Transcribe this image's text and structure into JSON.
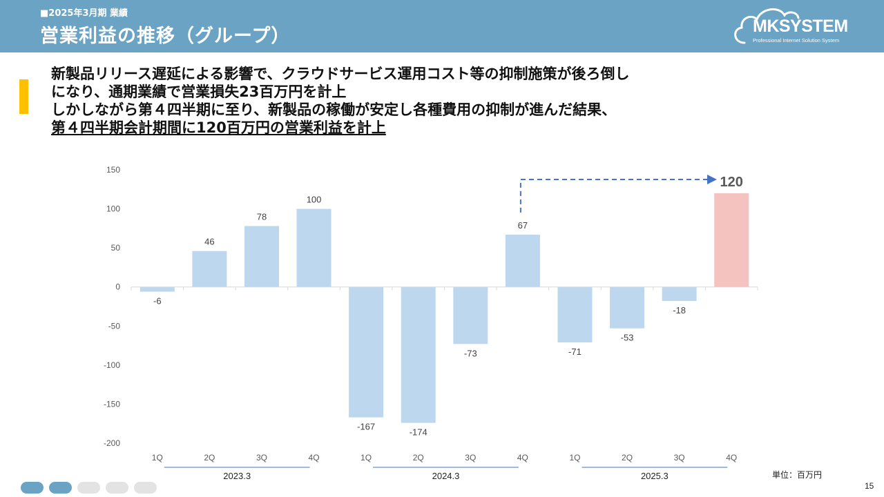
{
  "header": {
    "section_label": "■2025年3月期 業績",
    "title": "営業利益の推移（グループ）"
  },
  "logo": {
    "name": "MKSYSTEM",
    "tagline": "Professional Internet Solution System"
  },
  "summary": {
    "line1": "新製品リリース遅延による影響で、クラウドサービス運用コスト等の抑制施策が後ろ倒し",
    "line2": "になり、通期業績で営業損失23百万円を計上",
    "line3": "しかしながら第４四半期に至り、新製品の稼働が安定し各種費用の抑制が進んだ結果、",
    "line4": "第４四半期会計期間に120百万円の営業利益を計上"
  },
  "chart_data": {
    "type": "bar",
    "categories": [
      "1Q",
      "2Q",
      "3Q",
      "4Q",
      "1Q",
      "2Q",
      "3Q",
      "4Q",
      "1Q",
      "2Q",
      "3Q",
      "4Q"
    ],
    "groups": [
      {
        "label": "2023.3",
        "start": 0,
        "end": 3
      },
      {
        "label": "2024.3",
        "start": 4,
        "end": 7
      },
      {
        "label": "2025.3",
        "start": 8,
        "end": 11
      }
    ],
    "values": [
      -6,
      46,
      78,
      100,
      -167,
      -174,
      -73,
      67,
      -71,
      -53,
      -18,
      120
    ],
    "ylim": [
      -200,
      150
    ],
    "yticks": [
      150,
      100,
      50,
      0,
      -50,
      -100,
      -150,
      -200
    ],
    "grid": false,
    "colors": {
      "bar": "#bdd7ee",
      "highlight": "#f4c2bf",
      "arrow": "#4472c4",
      "axis_line": "#d9d9d9",
      "group_line": "#4472c4"
    },
    "highlight_index": 11,
    "comparison_arrow": {
      "from_index": 7,
      "to_index": 11
    }
  },
  "unit_label": "単位：百万円",
  "page_number": "15",
  "pager": {
    "total": 5,
    "active": 2,
    "colors": {
      "active": "#6aa3c3",
      "inactive": "#e3e3e3"
    }
  }
}
